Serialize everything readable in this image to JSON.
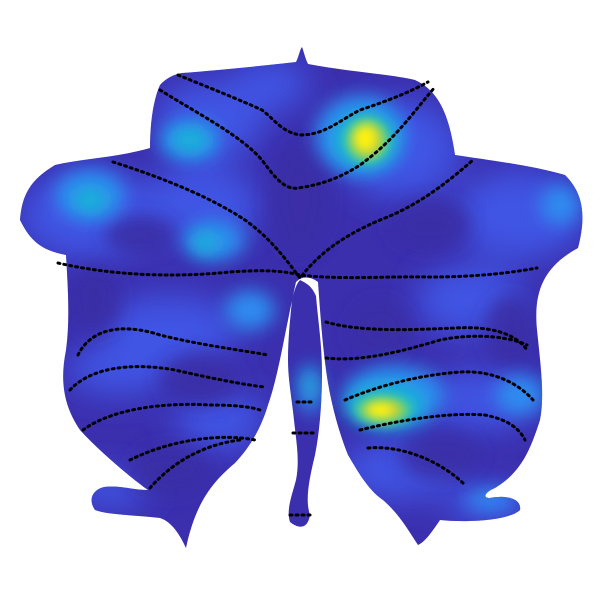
{
  "figure": {
    "colormap": [
      "#3a2fa6",
      "#3f55e4",
      "#2f8bf0",
      "#19b6d4",
      "#4ed18f",
      "#c9cf32",
      "#fdf30e"
    ],
    "background_color": "#ffffff",
    "base_color": "#3b2fae",
    "boundary_style": "dotted",
    "boundary_color": "#000000",
    "hotspots": [
      {
        "region": "upper-right",
        "intensity": 1.0
      },
      {
        "region": "lower-right",
        "intensity": 0.9
      }
    ]
  }
}
